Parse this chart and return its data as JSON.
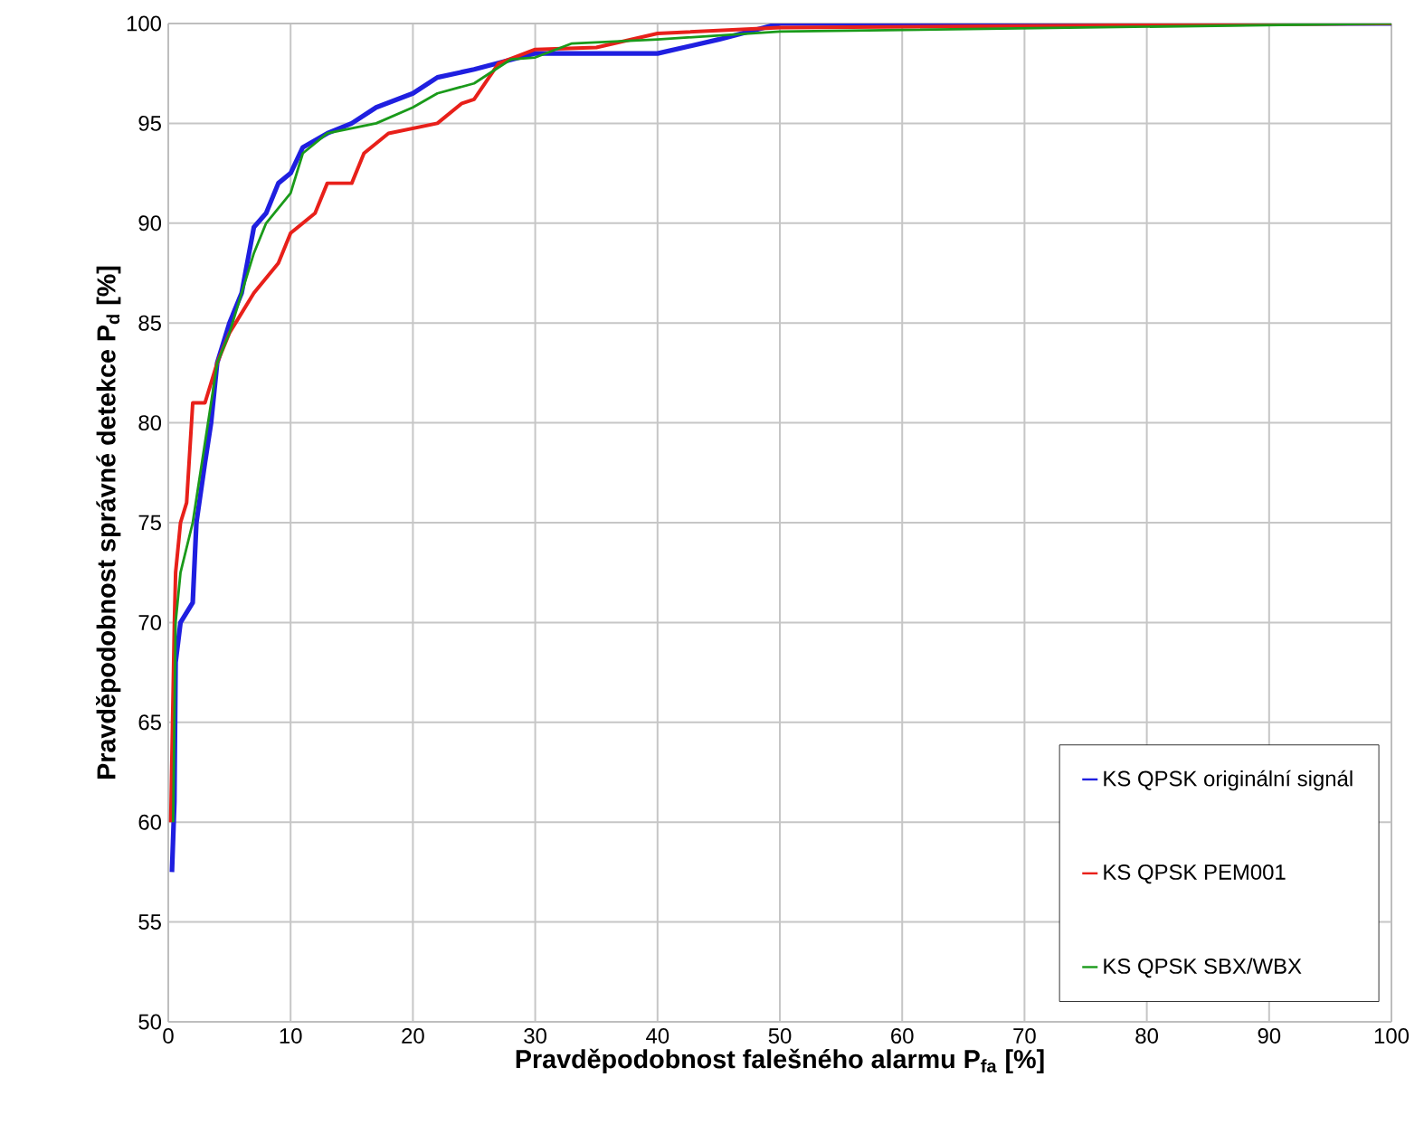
{
  "chart_data": {
    "type": "line",
    "xlabel": "Pravděpodobnost falešného alarmu P$_{fa}$ [%]",
    "ylabel": "Pravděpodobnost správné detekce P$_{d}$ [%]",
    "xlim": [
      0,
      100
    ],
    "ylim": [
      50,
      100
    ],
    "xticks": [
      0,
      10,
      20,
      30,
      40,
      50,
      60,
      70,
      80,
      90,
      100
    ],
    "yticks": [
      50,
      55,
      60,
      65,
      70,
      75,
      80,
      85,
      90,
      95,
      100
    ],
    "grid": true,
    "legend": "bottom right",
    "line_style": "solid",
    "marker": "none",
    "series": [
      {
        "name": "KS QPSK originální signál",
        "color": "#1f1fe0",
        "x": [
          0.3,
          0.5,
          0.6,
          1,
          2,
          2.3,
          3,
          3.5,
          4,
          5,
          6,
          7,
          8,
          9,
          10,
          11,
          13,
          15,
          17,
          20,
          22,
          25,
          30,
          35,
          40,
          45,
          50,
          100
        ],
        "values": [
          57.5,
          61,
          68,
          70,
          71,
          75,
          78,
          80,
          83,
          85,
          86.5,
          89.8,
          90.5,
          92,
          92.5,
          93.8,
          94.5,
          95,
          95.8,
          96.5,
          97.3,
          97.7,
          98.5,
          98.5,
          98.5,
          99.2,
          100,
          100
        ]
      },
      {
        "name": "KS QPSK PEM001",
        "color": "#e8201a",
        "x": [
          0.2,
          0.5,
          0.6,
          1,
          1.5,
          2,
          3,
          4,
          5,
          6,
          7,
          9,
          10,
          12,
          13,
          15,
          16,
          18,
          22,
          24,
          25,
          27,
          30,
          35,
          40,
          50,
          100
        ],
        "values": [
          60,
          70,
          72.5,
          75,
          76,
          81,
          81,
          83,
          84.5,
          85.5,
          86.5,
          88,
          89.5,
          90.5,
          92,
          92,
          93.5,
          94.5,
          95,
          96,
          96.2,
          98,
          98.7,
          98.8,
          99.5,
          99.8,
          100
        ]
      },
      {
        "name": "KS QPSK SBX/WBX",
        "color": "#1a9a1a",
        "x": [
          0.4,
          0.6,
          1,
          2,
          2.5,
          3,
          4,
          5,
          6,
          7,
          8,
          10,
          11,
          13,
          17,
          20,
          22,
          25,
          28,
          30,
          33,
          40,
          50,
          100
        ],
        "values": [
          60,
          70,
          72.5,
          75,
          77,
          79,
          83,
          84.5,
          86.5,
          88.5,
          90,
          91.5,
          93.5,
          94.5,
          95,
          95.8,
          96.5,
          97,
          98.2,
          98.3,
          99,
          99.2,
          99.6,
          100
        ]
      }
    ]
  }
}
